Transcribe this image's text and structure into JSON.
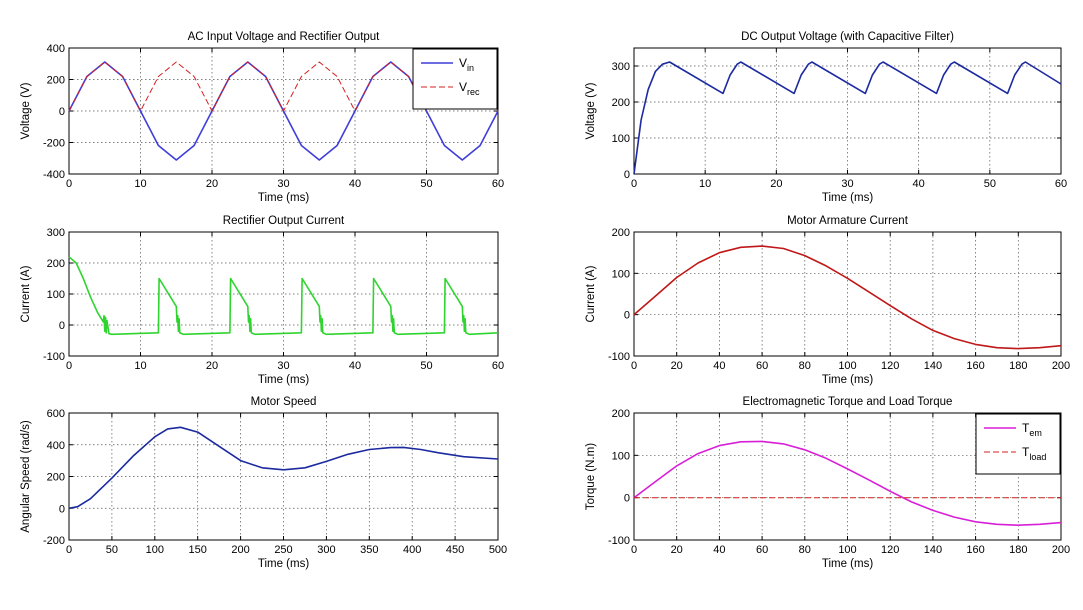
{
  "chart_data": [
    {
      "type": "line",
      "title": "AC Input Voltage and Rectifier Output",
      "xlabel": "Time (ms)",
      "ylabel": "Voltage (V)",
      "xlim": [
        0,
        60
      ],
      "ylim": [
        -400,
        400
      ],
      "xticks": [
        "0",
        "10",
        "20",
        "30",
        "40",
        "50",
        "60"
      ],
      "yticks": [
        "-400",
        "-200",
        "0",
        "200",
        "400"
      ],
      "grid": true,
      "legend_position": "top-right",
      "series": [
        {
          "name": "Vin",
          "label_main": "V",
          "label_sub": "in",
          "color": "#3f3fd8",
          "style": "solid",
          "x": [
            0,
            2.5,
            5,
            7.5,
            10,
            12.5,
            15,
            17.5,
            20,
            22.5,
            25,
            27.5,
            30,
            32.5,
            35,
            37.5,
            40,
            42.5,
            45,
            47.5,
            50,
            52.5,
            55,
            57.5,
            60
          ],
          "y": [
            0,
            219,
            311,
            219,
            0,
            -219,
            -311,
            -219,
            0,
            219,
            311,
            219,
            0,
            -219,
            -311,
            -219,
            0,
            219,
            311,
            219,
            0,
            -219,
            -311,
            -219,
            0
          ]
        },
        {
          "name": "Vrec",
          "label_main": "V",
          "label_sub": "rec",
          "color": "#d42020",
          "style": "dashed",
          "x": [
            0,
            2.5,
            5,
            7.5,
            10,
            12.5,
            15,
            17.5,
            20,
            22.5,
            25,
            27.5,
            30,
            32.5,
            35,
            37.5,
            40,
            42.5,
            45,
            47.5,
            50,
            52.5,
            55,
            57.5,
            60
          ],
          "y": [
            0,
            219,
            311,
            219,
            0,
            219,
            311,
            219,
            0,
            219,
            311,
            219,
            0,
            219,
            311,
            219,
            0,
            219,
            311,
            219,
            0,
            219,
            311,
            219,
            0
          ]
        }
      ]
    },
    {
      "type": "line",
      "title": "DC Output Voltage (with Capacitive Filter)",
      "xlabel": "Time (ms)",
      "ylabel": "Voltage (V)",
      "xlim": [
        0,
        60
      ],
      "ylim": [
        0,
        350
      ],
      "xticks": [
        "0",
        "10",
        "20",
        "30",
        "40",
        "50",
        "60"
      ],
      "yticks": [
        "0",
        "100",
        "200",
        "300"
      ],
      "grid": true,
      "series": [
        {
          "name": "",
          "color": "#1c2aa0",
          "style": "solid",
          "x": [
            0,
            1,
            2,
            3,
            4,
            5,
            12.5,
            13.5,
            14.5,
            15,
            22.5,
            23.5,
            24.5,
            25,
            32.5,
            33.5,
            34.5,
            35,
            42.5,
            43.5,
            44.5,
            45,
            52.5,
            53.5,
            54.5,
            55,
            60
          ],
          "y": [
            0,
            150,
            235,
            285,
            305,
            311,
            224,
            275,
            305,
            311,
            224,
            275,
            305,
            311,
            224,
            275,
            305,
            311,
            224,
            275,
            305,
            311,
            224,
            275,
            305,
            311,
            250
          ]
        }
      ]
    },
    {
      "type": "line",
      "title": "Rectifier Output Current",
      "xlabel": "Time (ms)",
      "ylabel": "Current (A)",
      "xlim": [
        0,
        60
      ],
      "ylim": [
        -100,
        300
      ],
      "xticks": [
        "0",
        "10",
        "20",
        "30",
        "40",
        "50",
        "60"
      ],
      "yticks": [
        "-100",
        "0",
        "100",
        "200",
        "300"
      ],
      "grid": true,
      "series": [
        {
          "name": "",
          "color": "#2fd42f",
          "style": "solid",
          "x": [
            0,
            1,
            2,
            3,
            4,
            4.8,
            4.9,
            5.0,
            5.1,
            5.2,
            5.3,
            5.6,
            6,
            12.5,
            12.6,
            15,
            15.1,
            15.2,
            15.3,
            15.4,
            15.5,
            15.8,
            16,
            22.5,
            22.6,
            25,
            25.1,
            25.2,
            25.3,
            25.4,
            25.5,
            25.8,
            26,
            32.5,
            32.6,
            35,
            35.1,
            35.2,
            35.3,
            35.4,
            35.5,
            35.8,
            36,
            42.5,
            42.6,
            45,
            45.1,
            45.2,
            45.3,
            45.4,
            45.5,
            45.8,
            46,
            52.5,
            52.6,
            55,
            55.1,
            55.2,
            55.3,
            55.4,
            55.5,
            55.8,
            56,
            60
          ],
          "y": [
            220,
            200,
            150,
            90,
            40,
            10,
            30,
            -20,
            25,
            -25,
            15,
            -28,
            -30,
            -25,
            150,
            60,
            10,
            30,
            -20,
            20,
            -25,
            -28,
            -30,
            -25,
            150,
            60,
            10,
            30,
            -20,
            20,
            -25,
            -28,
            -30,
            -25,
            150,
            60,
            10,
            30,
            -20,
            20,
            -25,
            -28,
            -30,
            -25,
            150,
            60,
            10,
            30,
            -20,
            20,
            -25,
            -28,
            -30,
            -25,
            150,
            60,
            10,
            30,
            -20,
            20,
            -25,
            -28,
            -30,
            -25
          ]
        }
      ]
    },
    {
      "type": "line",
      "title": "Motor Armature Current",
      "xlabel": "Time (ms)",
      "ylabel": "Current (A)",
      "xlim": [
        0,
        200
      ],
      "ylim": [
        -100,
        200
      ],
      "xticks": [
        "0",
        "20",
        "40",
        "60",
        "80",
        "100",
        "120",
        "140",
        "160",
        "180",
        "200"
      ],
      "yticks": [
        "-100",
        "0",
        "100",
        "200"
      ],
      "grid": true,
      "series": [
        {
          "name": "",
          "color": "#c01818",
          "style": "solid",
          "x": [
            0,
            10,
            20,
            30,
            40,
            50,
            60,
            70,
            80,
            90,
            100,
            110,
            120,
            130,
            140,
            150,
            160,
            170,
            180,
            190,
            200
          ],
          "y": [
            0,
            45,
            90,
            125,
            150,
            163,
            166,
            160,
            143,
            118,
            88,
            55,
            22,
            -10,
            -38,
            -58,
            -72,
            -80,
            -82,
            -80,
            -75
          ]
        }
      ]
    },
    {
      "type": "line",
      "title": "Motor Speed",
      "xlabel": "Time (ms)",
      "ylabel": "Angular Speed (rad/s)",
      "xlim": [
        0,
        500
      ],
      "ylim": [
        -200,
        600
      ],
      "xticks": [
        "0",
        "50",
        "100",
        "150",
        "200",
        "250",
        "300",
        "350",
        "400",
        "450",
        "500"
      ],
      "yticks": [
        "-200",
        "0",
        "200",
        "400",
        "600"
      ],
      "grid": true,
      "series": [
        {
          "name": "",
          "color": "#1c2aa0",
          "style": "solid",
          "x": [
            0,
            10,
            25,
            50,
            75,
            100,
            115,
            130,
            150,
            175,
            200,
            225,
            250,
            275,
            300,
            325,
            350,
            375,
            390,
            410,
            430,
            460,
            500
          ],
          "y": [
            0,
            10,
            60,
            190,
            330,
            450,
            500,
            510,
            480,
            390,
            300,
            255,
            242,
            255,
            295,
            340,
            370,
            382,
            383,
            370,
            350,
            325,
            310
          ]
        }
      ]
    },
    {
      "type": "line",
      "title": "Electromagnetic Torque and Load Torque",
      "xlabel": "Time (ms)",
      "ylabel": "Torque (N.m)",
      "xlim": [
        0,
        200
      ],
      "ylim": [
        -100,
        200
      ],
      "xticks": [
        "0",
        "20",
        "40",
        "60",
        "80",
        "100",
        "120",
        "140",
        "160",
        "180",
        "200"
      ],
      "yticks": [
        "-100",
        "0",
        "100",
        "200"
      ],
      "grid": true,
      "legend_position": "top-right",
      "series": [
        {
          "name": "Tem",
          "label_main": "T",
          "label_sub": "em",
          "color": "#d81fd8",
          "style": "solid",
          "x": [
            0,
            10,
            20,
            30,
            40,
            50,
            60,
            70,
            80,
            90,
            100,
            110,
            120,
            130,
            140,
            150,
            160,
            170,
            180,
            190,
            200
          ],
          "y": [
            0,
            38,
            75,
            104,
            123,
            132,
            133,
            127,
            113,
            93,
            68,
            42,
            15,
            -10,
            -30,
            -46,
            -57,
            -63,
            -65,
            -63,
            -59
          ]
        },
        {
          "name": "Tload",
          "label_main": "T",
          "label_sub": "load",
          "color": "#d42020",
          "style": "dashed",
          "x": [
            0,
            200
          ],
          "y": [
            0,
            0
          ]
        }
      ]
    }
  ]
}
